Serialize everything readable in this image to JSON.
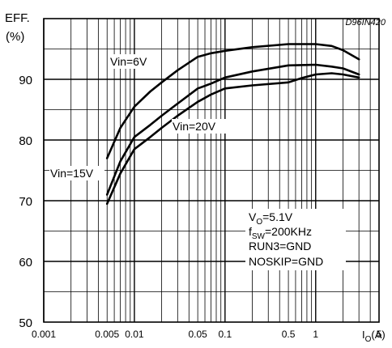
{
  "chart_data": {
    "type": "line",
    "title": "",
    "corner_label": "D96IN420",
    "ylabel_line1": "EFF.",
    "ylabel_line2": "(%)",
    "xlabel_main": "I",
    "xlabel_sub": "O",
    "xlabel_unit": "(A)",
    "x_scale": "log",
    "xlim": [
      0.001,
      5
    ],
    "ylim": [
      50,
      100
    ],
    "grid": true,
    "x_ticks": [
      {
        "value": 0.001,
        "label": "0.001"
      },
      {
        "value": 0.005,
        "label": "0.005"
      },
      {
        "value": 0.01,
        "label": "0.01"
      },
      {
        "value": 0.05,
        "label": "0.05"
      },
      {
        "value": 0.1,
        "label": "0.1"
      },
      {
        "value": 0.5,
        "label": "0.5"
      },
      {
        "value": 1,
        "label": "1"
      },
      {
        "value": 5,
        "label": "5"
      }
    ],
    "y_ticks": [
      {
        "value": 50,
        "label": "50"
      },
      {
        "value": 60,
        "label": "60"
      },
      {
        "value": 70,
        "label": "70"
      },
      {
        "value": 80,
        "label": "80"
      },
      {
        "value": 90,
        "label": "90"
      }
    ],
    "series": [
      {
        "name": "Vin=6V",
        "x": [
          0.005,
          0.007,
          0.01,
          0.015,
          0.02,
          0.03,
          0.05,
          0.07,
          0.1,
          0.2,
          0.5,
          1,
          1.5,
          2,
          3
        ],
        "y": [
          77,
          82,
          85.5,
          88,
          89.5,
          91.5,
          93.7,
          94.3,
          94.7,
          95.3,
          95.8,
          95.8,
          95.5,
          94.8,
          93.3
        ]
      },
      {
        "name": "Vin=15V",
        "x": [
          0.005,
          0.007,
          0.01,
          0.015,
          0.02,
          0.03,
          0.05,
          0.07,
          0.1,
          0.2,
          0.5,
          1,
          1.5,
          2,
          3
        ],
        "y": [
          71,
          76.5,
          80.5,
          82.5,
          84,
          86,
          88.5,
          89.3,
          90.3,
          91.3,
          92.3,
          92.4,
          92.1,
          91.8,
          90.8
        ]
      },
      {
        "name": "Vin=20V",
        "x": [
          0.005,
          0.007,
          0.01,
          0.015,
          0.02,
          0.03,
          0.05,
          0.07,
          0.1,
          0.2,
          0.5,
          0.7,
          1,
          1.5,
          2,
          3
        ],
        "y": [
          69.5,
          74.5,
          78.5,
          80.5,
          82,
          84,
          86.3,
          87.5,
          88.5,
          89,
          89.5,
          90.2,
          90.8,
          91,
          90.8,
          90.3
        ]
      }
    ],
    "series_labels": [
      "Vin=6V",
      "Vin=15V",
      "Vin=20V"
    ],
    "conditions": [
      {
        "main": "V",
        "sub": "O",
        "rest": "=5.1V"
      },
      {
        "main": "f",
        "sub": "SW",
        "rest": "=200KHz"
      },
      {
        "main": "RUN3=GND",
        "sub": "",
        "rest": ""
      },
      {
        "main": "NOSKIP=GND",
        "sub": "",
        "rest": ""
      }
    ]
  }
}
